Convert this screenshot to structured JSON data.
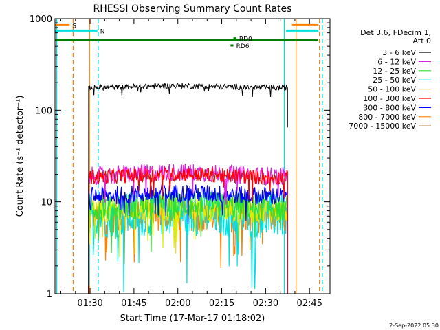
{
  "chart_data": {
    "type": "line",
    "title": "RHESSI Observing Summary Count Rates",
    "xlabel": "Start Time (17-Mar-17 01:18:02)",
    "ylabel": "Count Rate (s⁻¹ detector⁻¹)",
    "yscale": "log",
    "ylim": [
      1,
      1000
    ],
    "xlim_minutes": [
      78,
      172
    ],
    "x_ticks": [
      {
        "label": "01:30",
        "value": 90
      },
      {
        "label": "01:45",
        "value": 105
      },
      {
        "label": "02:00",
        "value": 120
      },
      {
        "label": "02:15",
        "value": 135
      },
      {
        "label": "02:30",
        "value": 150
      },
      {
        "label": "02:45",
        "value": 165
      }
    ],
    "y_ticks": [
      {
        "label": "1",
        "value": 1
      },
      {
        "label": "10",
        "value": 10
      },
      {
        "label": "100",
        "value": 100
      },
      {
        "label": "1000",
        "value": 1000
      }
    ],
    "legend": {
      "position": "top-right",
      "header": [
        "Det 3,6, FDecim 1,",
        "Att 0"
      ],
      "entries": [
        {
          "label": "3 - 6 keV",
          "color": "#000000"
        },
        {
          "label": "6 - 12 keV",
          "color": "#e020e0"
        },
        {
          "label": "12 - 25 keV",
          "color": "#30e030"
        },
        {
          "label": "25 - 50 keV",
          "color": "#00e0e0"
        },
        {
          "label": "50 - 100 keV",
          "color": "#e8e800"
        },
        {
          "label": "100 - 300 keV",
          "color": "#ff0000"
        },
        {
          "label": "300 - 800 keV",
          "color": "#0000ff"
        },
        {
          "label": "800 - 7000 keV",
          "color": "#ff8000"
        },
        {
          "label": "7000 - 15000 keV",
          "color": "#a06000"
        }
      ]
    },
    "series": [
      {
        "name": "3 - 6 keV",
        "color": "#000000",
        "x_start": 89.5,
        "x_end": 157.5,
        "level": 175,
        "peak": 185,
        "noise": 0.03
      },
      {
        "name": "6 - 12 keV",
        "color": "#e020e0",
        "x_start": 89.5,
        "x_end": 157.5,
        "level": 19,
        "peak": 21,
        "noise": 0.1
      },
      {
        "name": "12 - 25 keV",
        "color": "#30e030",
        "x_start": 89.5,
        "x_end": 157.5,
        "level": 8.8,
        "peak": 9.2,
        "noise": 0.15
      },
      {
        "name": "25 - 50 keV",
        "color": "#00e0e0",
        "x_start": 89.5,
        "x_end": 157.5,
        "level": 7.0,
        "peak": 7.5,
        "noise": 0.25
      },
      {
        "name": "50 - 100 keV",
        "color": "#e8e800",
        "x_start": 89.5,
        "x_end": 157.5,
        "level": 8.2,
        "peak": 8.5,
        "noise": 0.15
      },
      {
        "name": "100 - 300 keV",
        "color": "#ff0000",
        "x_start": 89.5,
        "x_end": 157.5,
        "level": 18.5,
        "peak": 20,
        "noise": 0.08
      },
      {
        "name": "300 - 800 keV",
        "color": "#0000ff",
        "x_start": 89.5,
        "x_end": 157.5,
        "level": 11.5,
        "peak": 12.5,
        "noise": 0.1
      },
      {
        "name": "800 - 7000 keV",
        "color": "#ff8000",
        "x_start": 89.5,
        "x_end": 157.5,
        "level": 6.8,
        "peak": 7.2,
        "noise": 0.18
      }
    ],
    "flag_bars": [
      {
        "label": "S",
        "color": "#ff8000",
        "y": 850,
        "segments": [
          [
            78,
            83
          ],
          [
            159,
            168
          ]
        ]
      },
      {
        "label": "N",
        "color": "#00e0e0",
        "y": 740,
        "segments": [
          [
            78,
            92.5
          ],
          [
            157,
            168
          ]
        ]
      },
      {
        "label": "",
        "color": "#008000",
        "y": 590,
        "segments": [
          [
            78,
            168
          ]
        ]
      },
      {
        "label": "RD0",
        "color": "#008000",
        "y": 610,
        "segments": [
          [
            139,
            140
          ]
        ]
      },
      {
        "label": "RD6",
        "color": "#008000",
        "y": 510,
        "segments": [
          [
            138,
            139
          ]
        ]
      }
    ],
    "vertical_lines": [
      {
        "x": 78.6,
        "color": "#00e0e0",
        "dashed": false
      },
      {
        "x": 84.2,
        "color": "#ff8000",
        "dashed": true
      },
      {
        "x": 89.8,
        "color": "#ff8000",
        "dashed": false
      },
      {
        "x": 92.8,
        "color": "#00e0e0",
        "dashed": true
      },
      {
        "x": 156.4,
        "color": "#00e0e0",
        "dashed": false
      },
      {
        "x": 160.4,
        "color": "#ff8000",
        "dashed": false
      },
      {
        "x": 168.4,
        "color": "#ff8000",
        "dashed": true
      },
      {
        "x": 169.4,
        "color": "#00e0e0",
        "dashed": true
      }
    ],
    "footer_timestamp": "2-Sep-2022 05:30"
  }
}
